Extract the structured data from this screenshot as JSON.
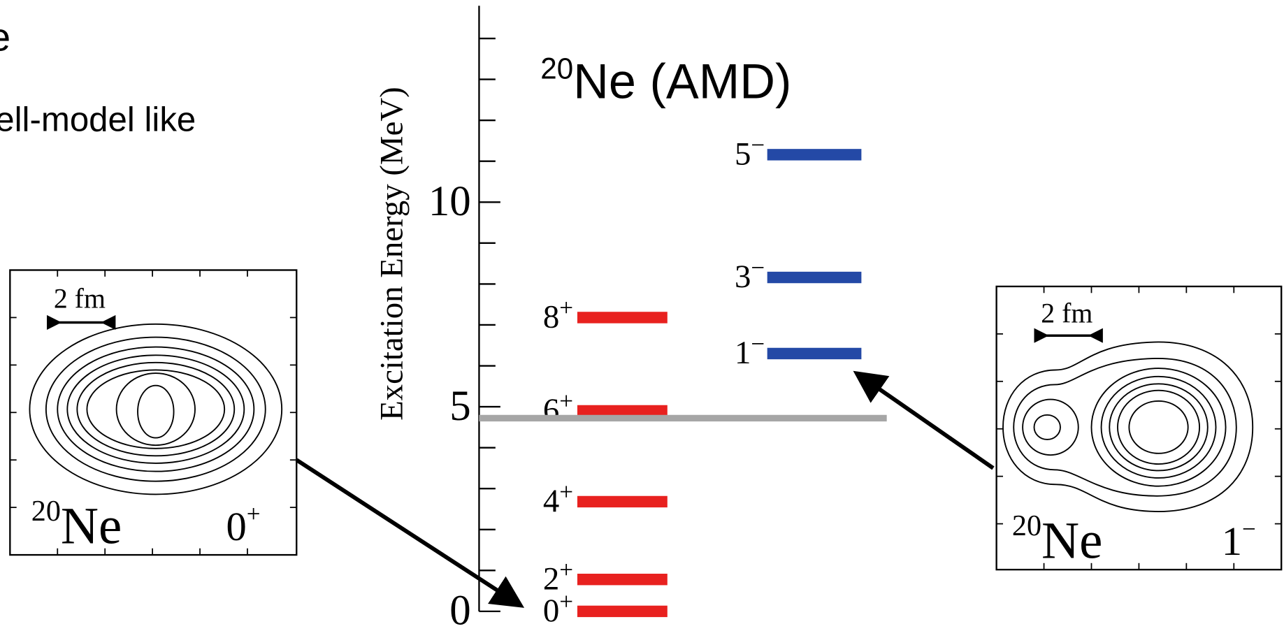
{
  "slide": {
    "text_lines": [
      "e",
      "ell-model like"
    ]
  },
  "chart_data": {
    "type": "level",
    "title": {
      "superscript": "20",
      "text": "Ne (AMD)"
    },
    "ylabel": "Excitation Energy (MeV)",
    "ylim": [
      0,
      14.8
    ],
    "yticks": [
      0,
      5,
      10
    ],
    "yminorticks": [
      1,
      2,
      3,
      4,
      6,
      7,
      8,
      9,
      11,
      12,
      13,
      14
    ],
    "threshold": {
      "value": 4.72,
      "color": "#a6a6a6"
    },
    "series": [
      {
        "color": "#e8211f",
        "labels": [
          "0",
          "2",
          "4",
          "6",
          "8"
        ],
        "parities": [
          "+",
          "+",
          "+",
          "+",
          "+"
        ],
        "values": [
          0,
          0.78,
          2.68,
          4.9,
          7.18
        ]
      },
      {
        "color": "#2449a6",
        "labels": [
          "1",
          "3",
          "5"
        ],
        "parities": [
          "−",
          "−",
          "−"
        ],
        "values": [
          6.3,
          8.16,
          11.16
        ]
      }
    ]
  },
  "insets": [
    {
      "scale": "2 fm",
      "mass": "20",
      "element": "Ne",
      "state": "0",
      "parity": "+"
    },
    {
      "scale": "2 fm",
      "mass": "20",
      "element": "Ne",
      "state": "1",
      "parity": "−"
    }
  ]
}
